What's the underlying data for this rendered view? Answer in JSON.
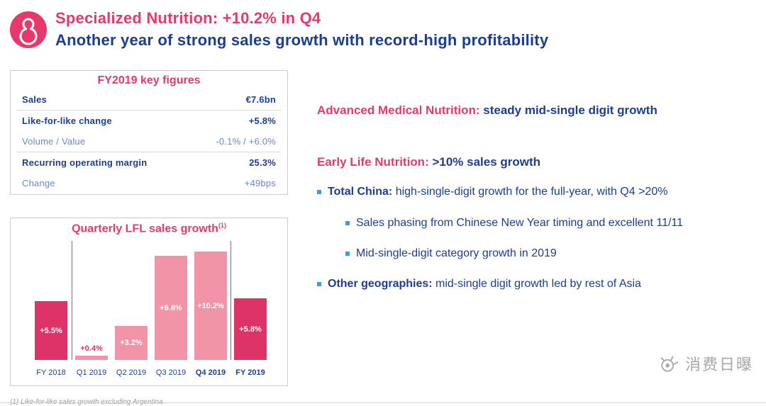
{
  "colors": {
    "pink": "#e7386b",
    "navy": "#1d3d91",
    "bar_dark": "#dd3366",
    "bar_light": "#f194a7",
    "bullet_blue": "#3aa0d9"
  },
  "header": {
    "title": "Specialized Nutrition: +10.2% in Q4",
    "subtitle": "Another year of strong sales growth with record-high profitability"
  },
  "key_figures": {
    "title": "FY2019 key figures",
    "rows": [
      {
        "label": "Sales",
        "value": "€7.6bn"
      },
      {
        "label": "Like-for-like change",
        "value": "+5.8%"
      },
      {
        "label": "Volume / Value",
        "value": "-0.1% / +6.0%"
      },
      {
        "label": "Recurring operating margin",
        "value": "25.3%"
      },
      {
        "label": "Change",
        "value": "+49bps"
      }
    ]
  },
  "chart_data": {
    "type": "bar",
    "title": "Quarterly LFL sales growth(1)",
    "title_main": "Quarterly LFL sales growth",
    "title_sup": "(1)",
    "categories": [
      "FY 2018",
      "Q1 2019",
      "Q2 2019",
      "Q3 2019",
      "Q4 2019",
      "FY 2019"
    ],
    "values": [
      5.5,
      0.4,
      3.2,
      9.8,
      10.2,
      5.8
    ],
    "labels": [
      "+5.5%",
      "+0.4%",
      "+3.2%",
      "+9.8%",
      "+10.2%",
      "+5.8%"
    ],
    "bar_types": [
      "dark",
      "light",
      "light",
      "light",
      "light",
      "dark"
    ],
    "bold_categories": [
      "Q4 2019",
      "FY 2019"
    ],
    "ylim": [
      0,
      11
    ],
    "unit": "percent LFL growth",
    "legend": "none",
    "grid": false,
    "colors": {
      "dark": "#dd3366",
      "light": "#f194a7"
    }
  },
  "right_panel": {
    "medical": {
      "lead": "Advanced Medical Nutrition:",
      "rest": " steady mid-single digit growth"
    },
    "early_life": {
      "lead": "Early Life Nutrition:",
      "rest": " >10% sales growth"
    },
    "bullets": [
      {
        "bold": "Total China:",
        "text": " high-single-digit growth for the full-year, with Q4 >20%"
      },
      {
        "bold": "",
        "text": "Sales phasing from Chinese New Year timing and excellent 11/11"
      },
      {
        "bold": "",
        "text": "Mid-single-digit category growth in 2019"
      },
      {
        "bold": "Other geographies:",
        "text": " mid-single digit growth led by rest of Asia"
      }
    ]
  },
  "footnote": "(1) Like-for-like sales growth excluding Argentina",
  "watermark": "消费日曝"
}
